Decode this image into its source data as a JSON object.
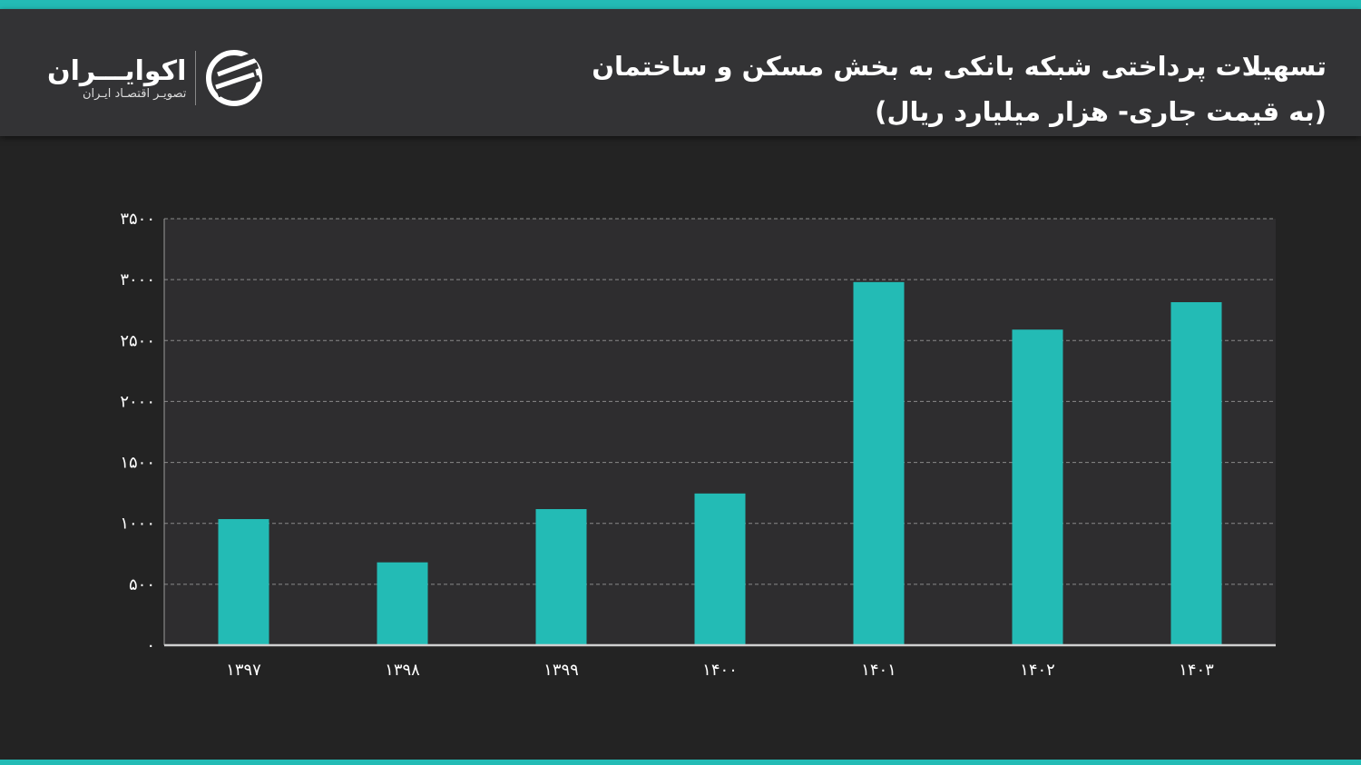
{
  "header": {
    "title_line1": "تسهیلات پرداختی شبکه بانکی به بخش مسکن و ساختمان",
    "title_line2": "(به قیمت جاری- هزار میلیارد ریال)"
  },
  "logo": {
    "name": "اکوایـــران",
    "tagline": "تصویـر اقتصـاد ایـران"
  },
  "colors": {
    "bar": "#23bbb5",
    "background": "#232323",
    "plot_background": "#2e2d2f",
    "accent": "#23bbb5"
  },
  "chart_data": {
    "type": "bar",
    "title": "تسهیلات پرداختی شبکه بانکی به بخش مسکن و ساختمان (به قیمت جاری- هزار میلیارد ریال)",
    "categories": [
      "۱۳۹۷",
      "۱۳۹۸",
      "۱۳۹۹",
      "۱۴۰۰",
      "۱۴۰۱",
      "۱۴۰۲",
      "۱۴۰۳"
    ],
    "values": [
      1035,
      680,
      1117,
      1245,
      2980,
      2590,
      2815
    ],
    "ylim": [
      0,
      3500
    ],
    "yticks": [
      0,
      500,
      1000,
      1500,
      2000,
      2500,
      3000,
      3500
    ],
    "ytick_labels": [
      "۰",
      "۵۰۰",
      "۱۰۰۰",
      "۱۵۰۰",
      "۲۰۰۰",
      "۲۵۰۰",
      "۳۰۰۰",
      "۳۵۰۰"
    ],
    "grid": true,
    "xlabel": "",
    "ylabel": ""
  }
}
